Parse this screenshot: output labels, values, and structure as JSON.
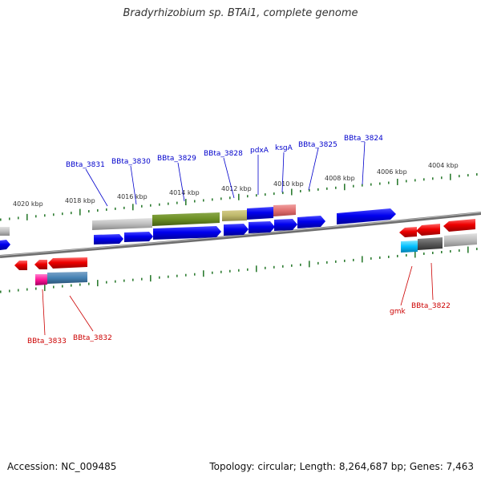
{
  "title": "Bradyrhizobium sp. BTAi1, complete genome",
  "accession": "Accession: NC_009485",
  "summary": "Topology: circular; Length: 8,264,687 bp; Genes: 7,463",
  "colors": {
    "backbone": "#777777",
    "tick": "#2e7d32",
    "label_top": "#0000cc",
    "label_bottom": "#cc0000",
    "kbp_text": "#333333"
  },
  "kbp_labels": [
    "4020 kbp",
    "4018 kbp",
    "4016 kbp",
    "4014 kbp",
    "4012 kbp",
    "4010 kbp",
    "4008 kbp",
    "4006 kbp",
    "4004 kbp"
  ],
  "genes_top": [
    "BBta_3831",
    "BBta_3830",
    "BBta_3829",
    "BBta_3828",
    "pdxA",
    "ksgA",
    "BBta_3825",
    "BBta_3824"
  ],
  "genes_bottom": [
    "BBta_3833",
    "BBta_3832",
    "gmk",
    "BBta_3822"
  ]
}
